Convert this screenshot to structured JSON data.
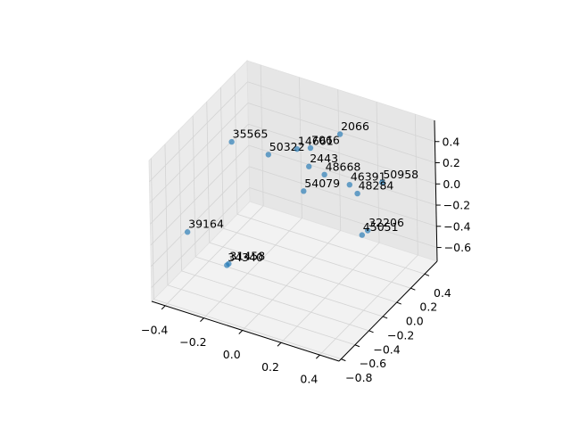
{
  "chart_data": {
    "type": "scatter3d",
    "color": "#1f77b4",
    "labels": [
      "35565",
      "50322",
      "14661",
      "7066",
      "2066",
      "2443",
      "48668",
      "46391",
      "50958",
      "48284",
      "54079",
      "32206",
      "45051",
      "39164",
      "31458",
      "34340"
    ],
    "x": [
      -0.3,
      -0.11,
      0.04,
      0.11,
      0.11,
      0.1,
      0.18,
      0.31,
      0.48,
      0.35,
      0.07,
      0.4,
      0.37,
      -0.38,
      -0.22,
      -0.23
    ],
    "y": [
      -0.12,
      -0.12,
      -0.12,
      -0.12,
      0.3,
      -0.12,
      -0.12,
      -0.12,
      -0.12,
      -0.12,
      -0.12,
      -0.12,
      -0.12,
      -0.55,
      -0.41,
      -0.41
    ],
    "z": [
      0.4,
      0.39,
      0.53,
      0.58,
      0.43,
      0.4,
      0.37,
      0.35,
      0.47,
      0.29,
      0.15,
      -0.03,
      -0.09,
      -0.21,
      -0.51,
      -0.53
    ],
    "xlim": [
      -0.47,
      0.5
    ],
    "ylim": [
      -0.83,
      0.58
    ],
    "zlim": [
      -0.73,
      0.6
    ],
    "xticks": [
      {
        "value": -0.4,
        "label": "−0.4"
      },
      {
        "value": -0.2,
        "label": "−0.2"
      },
      {
        "value": 0,
        "label": "0.0"
      },
      0.2,
      0.4
    ],
    "yticks": [
      {
        "value": -0.8,
        "label": "−0.8"
      },
      {
        "value": -0.6,
        "label": "−0.6"
      },
      {
        "value": -0.4,
        "label": "−0.4"
      },
      {
        "value": -0.2,
        "label": "−0.2"
      },
      {
        "value": 0,
        "label": "0.0"
      },
      0.2,
      0.4
    ],
    "zticks": [
      {
        "value": -0.6,
        "label": "−0.6"
      },
      {
        "value": -0.4,
        "label": "−0.4"
      },
      {
        "value": -0.2,
        "label": "−0.2"
      },
      {
        "value": 0,
        "label": "0.0"
      },
      0.2,
      0.4
    ],
    "grid": true
  }
}
